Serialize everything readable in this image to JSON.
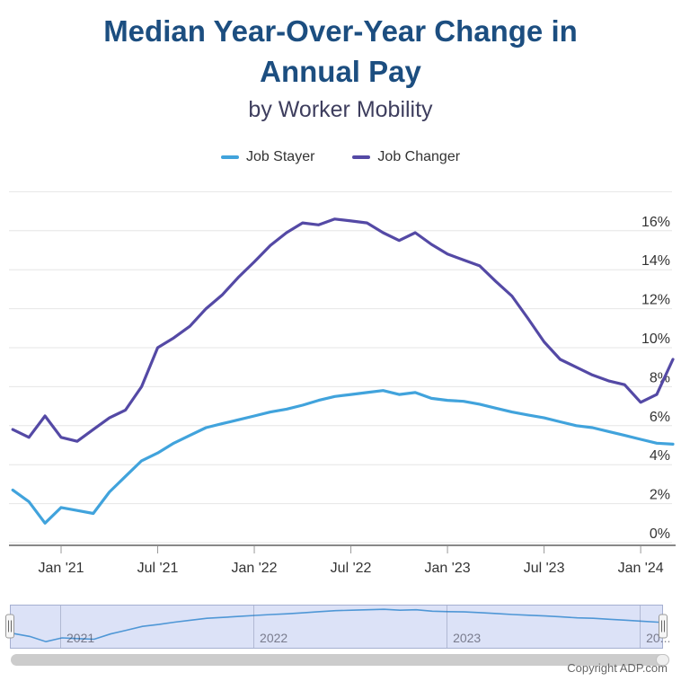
{
  "header": {
    "title": "Median Year-Over-Year Change in Annual Pay",
    "subtitle": "by Worker Mobility"
  },
  "legend": [
    {
      "label": "Job Stayer",
      "color": "#41a3dc"
    },
    {
      "label": "Job Changer",
      "color": "#5449a5"
    }
  ],
  "chart_data": {
    "type": "line",
    "title": "Median Year-Over-Year Change in Annual Pay",
    "subtitle": "by Worker Mobility",
    "ylabel": "",
    "xlabel": "",
    "ylim": [
      0,
      18
    ],
    "grid": true,
    "legend_position": "top",
    "y_tick_labels": [
      "0%",
      "2%",
      "4%",
      "6%",
      "8%",
      "10%",
      "12%",
      "14%",
      "16%"
    ],
    "x_tick_labels": [
      "Jan '21",
      "Jul '21",
      "Jan '22",
      "Jul '22",
      "Jan '23",
      "Jul '23",
      "Jan '24"
    ],
    "x": [
      "Oct '20",
      "Nov '20",
      "Dec '20",
      "Jan '21",
      "Feb '21",
      "Mar '21",
      "Apr '21",
      "May '21",
      "Jun '21",
      "Jul '21",
      "Aug '21",
      "Sep '21",
      "Oct '21",
      "Nov '21",
      "Dec '21",
      "Jan '22",
      "Feb '22",
      "Mar '22",
      "Apr '22",
      "May '22",
      "Jun '22",
      "Jul '22",
      "Aug '22",
      "Sep '22",
      "Oct '22",
      "Nov '22",
      "Dec '22",
      "Jan '23",
      "Feb '23",
      "Mar '23",
      "Apr '23",
      "May '23",
      "Jun '23",
      "Jul '23",
      "Aug '23",
      "Sep '23",
      "Oct '23",
      "Nov '23",
      "Dec '23",
      "Jan '24",
      "Feb '24",
      "Mar '24"
    ],
    "series": [
      {
        "name": "Job Stayer",
        "color": "#41a3dc",
        "values": [
          2.7,
          2.1,
          1.0,
          1.8,
          1.65,
          1.5,
          2.6,
          3.4,
          4.2,
          4.6,
          5.1,
          5.5,
          5.9,
          6.1,
          6.3,
          6.5,
          6.7,
          6.85,
          7.05,
          7.3,
          7.5,
          7.6,
          7.7,
          7.8,
          7.6,
          7.7,
          7.4,
          7.3,
          7.25,
          7.1,
          6.9,
          6.7,
          6.55,
          6.4,
          6.2,
          6.0,
          5.9,
          5.7,
          5.5,
          5.3,
          5.1,
          5.05
        ]
      },
      {
        "name": "Job Changer",
        "color": "#5449a5",
        "values": [
          5.8,
          5.4,
          6.5,
          5.4,
          5.2,
          5.8,
          6.4,
          6.8,
          8.0,
          10.0,
          10.5,
          11.1,
          12.0,
          12.7,
          13.6,
          14.4,
          15.25,
          15.9,
          16.4,
          16.3,
          16.6,
          16.5,
          16.4,
          15.9,
          15.5,
          15.9,
          15.3,
          14.8,
          14.5,
          14.2,
          13.4,
          12.65,
          11.5,
          10.3,
          9.4,
          9.0,
          8.6,
          8.3,
          8.1,
          7.2,
          7.6,
          9.4
        ]
      }
    ]
  },
  "navigator": {
    "year_labels": [
      "2021",
      "2022",
      "2023",
      "20..."
    ],
    "range_min": 0,
    "range_max": 8.3
  },
  "footer": {
    "copyright": "Copyright ADP.com"
  }
}
